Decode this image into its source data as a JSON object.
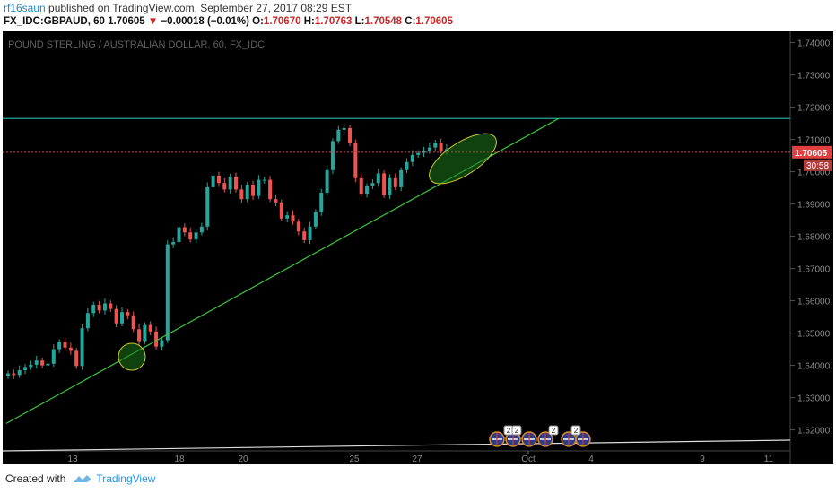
{
  "header": {
    "user": "rf16saun",
    "published_text": " published on TradingView.com, September 27, 2017 08:29 EST",
    "symbol": "FX_IDC:GBPAUD, 60",
    "price": "1.70605",
    "change": "−0.00018 (−0.01%)",
    "o_label": "O:",
    "o_value": "1.70670",
    "h_label": "H:",
    "h_value": "1.70763",
    "l_label": "L:",
    "l_value": "1.70548",
    "c_label": "C:",
    "c_value": "1.70605"
  },
  "footer": {
    "created_with": "Created with",
    "brand": "TradingView"
  },
  "colors": {
    "background": "#000000",
    "trendline": "#3cc43c",
    "resistance": "#2ab7b7",
    "last_price": "#e04040",
    "up": "#26a69a",
    "down": "#ef5350"
  },
  "chart_data": {
    "type": "line",
    "title": "POUND STERLING / AUSTRALIAN DOLLAR, 60, FX_IDC",
    "y_ticks": [
      "1.74000",
      "1.73000",
      "1.72000",
      "1.71000",
      "1.70000",
      "1.69000",
      "1.68000",
      "1.67000",
      "1.66000",
      "1.65000",
      "1.64000",
      "1.63000",
      "1.62000"
    ],
    "y_tick_values": [
      1.74,
      1.73,
      1.72,
      1.71,
      1.7,
      1.69,
      1.68,
      1.67,
      1.66,
      1.65,
      1.64,
      1.63,
      1.62
    ],
    "x_ticks": [
      "13",
      "18",
      "20",
      "25",
      "27",
      "Oct",
      "4",
      "9",
      "11"
    ],
    "ylim": [
      1.6135,
      1.7435
    ],
    "last_price": "1.70605",
    "countdown": "30:58",
    "resistance_level": 1.7165,
    "series": [
      {
        "values": [
          1.6375,
          1.637,
          1.6385,
          1.6395,
          1.6402,
          1.6415,
          1.64,
          1.6405,
          1.645,
          1.6472,
          1.6455,
          1.6445,
          1.6398,
          1.6515,
          1.6562,
          1.6588,
          1.657,
          1.6592,
          1.6575,
          1.653,
          1.6565,
          1.6555,
          1.6512,
          1.6475,
          1.6525,
          1.6505,
          1.6458,
          1.6478,
          1.6775,
          1.6782,
          1.6828,
          1.6812,
          1.679,
          1.6812,
          1.683,
          1.6952,
          1.6988,
          1.6965,
          1.6945,
          1.6985,
          1.6945,
          1.6915,
          1.696,
          1.6925,
          1.6975,
          1.6975,
          1.6915,
          1.6905,
          1.6855,
          1.6865,
          1.6845,
          1.6815,
          1.6788,
          1.683,
          1.6875,
          1.6935,
          1.7005,
          1.7095,
          1.713,
          1.7135,
          1.7088,
          1.698,
          1.6932,
          1.6955,
          1.6965,
          1.6995,
          1.6928,
          1.698,
          1.6952,
          1.7005,
          1.703,
          1.7052,
          1.7058,
          1.7065,
          1.7075,
          1.709,
          1.7065,
          1.707
        ]
      }
    ],
    "trendline": {
      "from": [
        0,
        1.622
      ],
      "to": [
        97,
        1.7165
      ]
    },
    "marker_boxes": [
      "2",
      "2",
      "2",
      "2"
    ]
  }
}
